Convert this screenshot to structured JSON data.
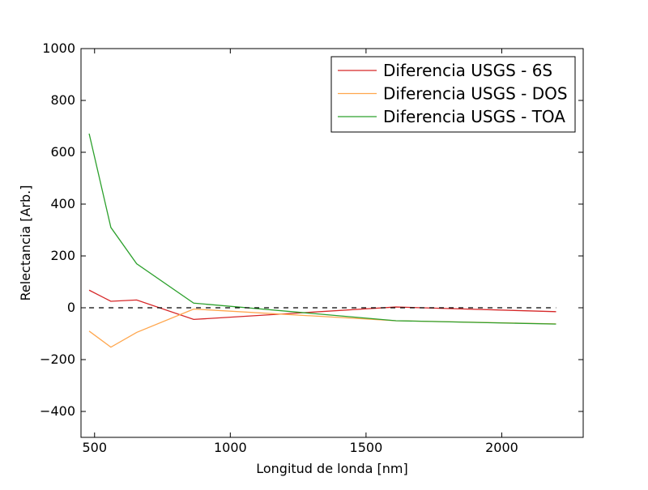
{
  "chart_data": {
    "type": "line",
    "title": "",
    "xlabel": "Longitud de londa [nm]",
    "ylabel": "Relectancia [Arb.]",
    "xlim": [
      450,
      2300
    ],
    "ylim": [
      -500,
      1000
    ],
    "xticks": [
      500,
      1000,
      1500,
      2000
    ],
    "yticks": [
      -400,
      -200,
      0,
      200,
      400,
      600,
      800,
      1000
    ],
    "xtick_labels": [
      "500",
      "1000",
      "1500",
      "2000"
    ],
    "ytick_labels": [
      "−400",
      "−200",
      "0",
      "200",
      "400",
      "600",
      "800",
      "1000"
    ],
    "grid": false,
    "legend_position": "top-right",
    "reference_line": {
      "y": 0,
      "style": "dashed",
      "color": "#000000"
    },
    "x": [
      480,
      560,
      655,
      865,
      1610,
      2200
    ],
    "series": [
      {
        "name": "Diferencia USGS - 6S",
        "color": "#d62728",
        "values": [
          68,
          25,
          30,
          -45,
          3,
          -15
        ]
      },
      {
        "name": "Diferencia USGS - DOS",
        "color": "#ffa64d",
        "values": [
          -90,
          -152,
          -95,
          -5,
          -50,
          -62
        ]
      },
      {
        "name": "Diferencia USGS - TOA",
        "color": "#2ca02c",
        "values": [
          672,
          310,
          170,
          18,
          -50,
          -63
        ]
      }
    ]
  }
}
